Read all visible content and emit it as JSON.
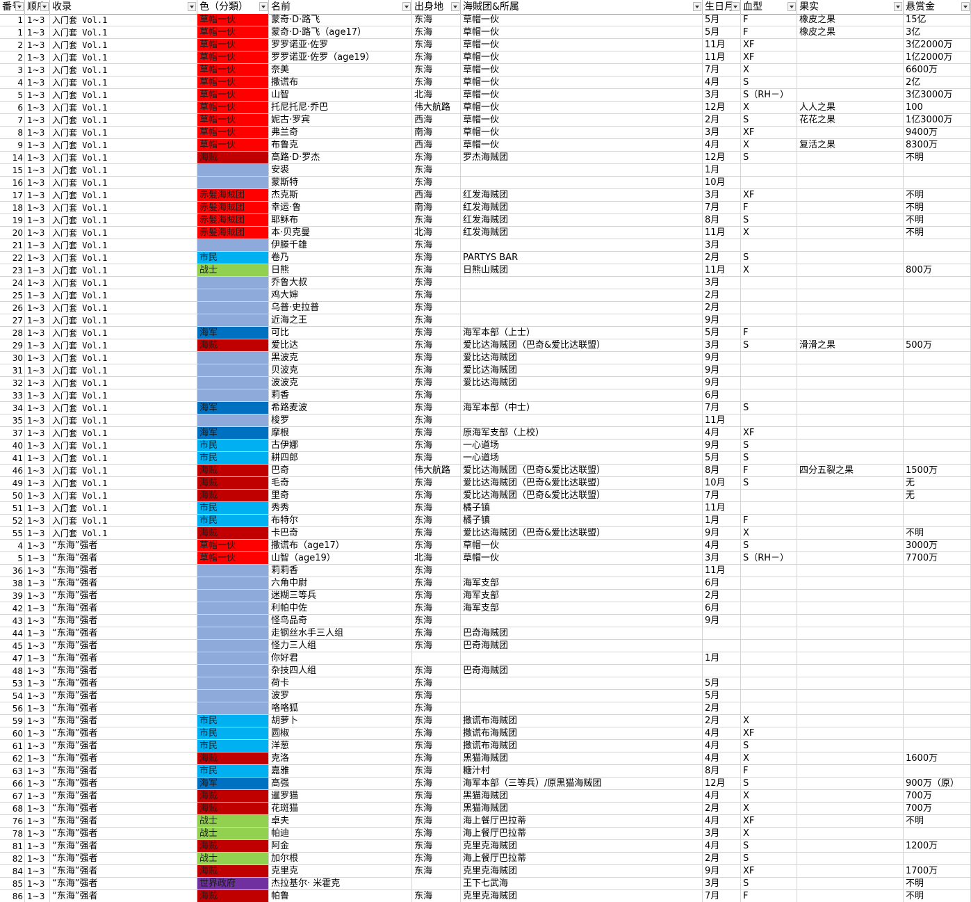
{
  "columns": [
    "番号",
    "顺序",
    "收录",
    "色（分類）",
    "名前",
    "出身地",
    "海賊团&所属",
    "生日月",
    "血型",
    "果实",
    "悬赏金"
  ],
  "colors": {
    "草帽一伙": "#ff0000",
    "海贼": "#c00000",
    "赤髪海賊团": "#ff0000",
    "市民": "#00b0f0",
    "战士": "#92d050",
    "海军": "#0070c0",
    "世界政府": "#7030a0",
    "none": "#8eaadb"
  },
  "rows": [
    [
      "1",
      "1~3",
      "入门套 Vol.1",
      "草帽一伙",
      "蒙奇·D·路飞",
      "东海",
      "草帽一伙",
      "5月",
      "F",
      "橡皮之果",
      "15亿"
    ],
    [
      "1",
      "1~3",
      "入门套 Vol.1",
      "草帽一伙",
      "蒙奇·D·路飞（age17）",
      "东海",
      "草帽一伙",
      "5月",
      "F",
      "橡皮之果",
      "3亿"
    ],
    [
      "2",
      "1~3",
      "入门套 Vol.1",
      "草帽一伙",
      "罗罗诺亚·佐罗",
      "东海",
      "草帽一伙",
      "11月",
      "XF",
      "",
      "3亿2000万"
    ],
    [
      "2",
      "1~3",
      "入门套 Vol.1",
      "草帽一伙",
      "罗罗诺亚·佐罗（age19）",
      "东海",
      "草帽一伙",
      "11月",
      "XF",
      "",
      "1亿2000万"
    ],
    [
      "3",
      "1~3",
      "入门套 Vol.1",
      "草帽一伙",
      "奈美",
      "东海",
      "草帽一伙",
      "7月",
      "X",
      "",
      "6600万"
    ],
    [
      "4",
      "1~3",
      "入门套 Vol.1",
      "草帽一伙",
      "撒谎布",
      "东海",
      "草帽一伙",
      "4月",
      "S",
      "",
      "2亿"
    ],
    [
      "5",
      "1~3",
      "入门套 Vol.1",
      "草帽一伙",
      "山智",
      "北海",
      "草帽一伙",
      "3月",
      "S（RH－）",
      "",
      "3亿3000万"
    ],
    [
      "6",
      "1~3",
      "入门套 Vol.1",
      "草帽一伙",
      "托尼托尼·乔巴",
      "伟大航路",
      "草帽一伙",
      "12月",
      "X",
      "人人之果",
      "100"
    ],
    [
      "7",
      "1~3",
      "入门套 Vol.1",
      "草帽一伙",
      "妮古·罗宾",
      "西海",
      "草帽一伙",
      "2月",
      "S",
      "花花之果",
      "1亿3000万"
    ],
    [
      "8",
      "1~3",
      "入门套 Vol.1",
      "草帽一伙",
      "弗兰奇",
      "南海",
      "草帽一伙",
      "3月",
      "XF",
      "",
      "9400万"
    ],
    [
      "9",
      "1~3",
      "入门套 Vol.1",
      "草帽一伙",
      "布鲁克",
      "西海",
      "草帽一伙",
      "4月",
      "X",
      "复活之果",
      "8300万"
    ],
    [
      "14",
      "1~3",
      "入门套 Vol.1",
      "海贼",
      "高路·D·罗杰",
      "东海",
      "罗杰海贼团",
      "12月",
      "S",
      "",
      "不明"
    ],
    [
      "15",
      "1~3",
      "入门套 Vol.1",
      "",
      "安裘",
      "东海",
      "",
      "1月",
      "",
      "",
      ""
    ],
    [
      "16",
      "1~3",
      "入门套 Vol.1",
      "",
      "蒙斯特",
      "东海",
      "",
      "10月",
      "",
      "",
      ""
    ],
    [
      "17",
      "1~3",
      "入门套 Vol.1",
      "赤髪海賊团",
      "杰克斯",
      "西海",
      "红发海贼团",
      "3月",
      "XF",
      "",
      "不明"
    ],
    [
      "18",
      "1~3",
      "入门套 Vol.1",
      "赤髪海賊团",
      "幸运·鲁",
      "南海",
      "红发海贼团",
      "7月",
      "F",
      "",
      "不明"
    ],
    [
      "19",
      "1~3",
      "入门套 Vol.1",
      "赤髪海賊团",
      "耶稣布",
      "东海",
      "红发海贼团",
      "8月",
      "S",
      "",
      "不明"
    ],
    [
      "20",
      "1~3",
      "入门套 Vol.1",
      "赤髪海賊团",
      "本·贝克曼",
      "北海",
      "红发海贼团",
      "11月",
      "X",
      "",
      "不明"
    ],
    [
      "21",
      "1~3",
      "入门套 Vol.1",
      "",
      "伊滕千雄",
      "东海",
      "",
      "3月",
      "",
      "",
      ""
    ],
    [
      "22",
      "1~3",
      "入门套 Vol.1",
      "市民",
      "卷乃",
      "东海",
      "PARTYS BAR",
      "2月",
      "S",
      "",
      ""
    ],
    [
      "23",
      "1~3",
      "入门套 Vol.1",
      "战士",
      "日熊",
      "东海",
      "日熊山贼团",
      "11月",
      "X",
      "",
      "800万"
    ],
    [
      "24",
      "1~3",
      "入门套 Vol.1",
      "",
      "乔鲁大叔",
      "东海",
      "",
      "3月",
      "",
      "",
      ""
    ],
    [
      "25",
      "1~3",
      "入门套 Vol.1",
      "",
      "鸡大婶",
      "东海",
      "",
      "2月",
      "",
      "",
      ""
    ],
    [
      "26",
      "1~3",
      "入门套 Vol.1",
      "",
      "乌普·史拉普",
      "东海",
      "",
      "2月",
      "",
      "",
      ""
    ],
    [
      "27",
      "1~3",
      "入门套 Vol.1",
      "",
      "近海之王",
      "东海",
      "",
      "9月",
      "",
      "",
      ""
    ],
    [
      "28",
      "1~3",
      "入门套 Vol.1",
      "海军",
      "可比",
      "东海",
      "海军本部（上士）",
      "5月",
      "F",
      "",
      ""
    ],
    [
      "29",
      "1~3",
      "入门套 Vol.1",
      "海贼",
      "爱比达",
      "东海",
      "爱比达海贼团（巴奇&爱比达联盟）",
      "3月",
      "S",
      "滑滑之果",
      "500万"
    ],
    [
      "30",
      "1~3",
      "入门套 Vol.1",
      "",
      "黑波克",
      "东海",
      "爱比达海贼团",
      "9月",
      "",
      "",
      ""
    ],
    [
      "31",
      "1~3",
      "入门套 Vol.1",
      "",
      "贝波克",
      "东海",
      "爱比达海贼团",
      "9月",
      "",
      "",
      ""
    ],
    [
      "32",
      "1~3",
      "入门套 Vol.1",
      "",
      "波波克",
      "东海",
      "爱比达海贼团",
      "9月",
      "",
      "",
      ""
    ],
    [
      "33",
      "1~3",
      "入门套 Vol.1",
      "",
      "莉香",
      "东海",
      "",
      "6月",
      "",
      "",
      ""
    ],
    [
      "34",
      "1~3",
      "入门套 Vol.1",
      "海军",
      "希路麦波",
      "东海",
      "海军本部（中士）",
      "7月",
      "S",
      "",
      ""
    ],
    [
      "35",
      "1~3",
      "入门套 Vol.1",
      "",
      "梭罗",
      "东海",
      "",
      "11月",
      "",
      "",
      ""
    ],
    [
      "37",
      "1~3",
      "入门套 Vol.1",
      "海军",
      "摩根",
      "东海",
      "原海军支部（上校）",
      "4月",
      "XF",
      "",
      ""
    ],
    [
      "40",
      "1~3",
      "入门套 Vol.1",
      "市民",
      "古伊娜",
      "东海",
      "一心道场",
      "9月",
      "S",
      "",
      ""
    ],
    [
      "41",
      "1~3",
      "入门套 Vol.1",
      "市民",
      "耕四郎",
      "东海",
      "一心道场",
      "5月",
      "S",
      "",
      ""
    ],
    [
      "46",
      "1~3",
      "入门套 Vol.1",
      "海贼",
      "巴奇",
      "伟大航路",
      "爱比达海贼团（巴奇&爱比达联盟）",
      "8月",
      "F",
      "四分五裂之果",
      "1500万"
    ],
    [
      "49",
      "1~3",
      "入门套 Vol.1",
      "海贼",
      "毛奇",
      "东海",
      "爱比达海贼团（巴奇&爱比达联盟）",
      "10月",
      "S",
      "",
      "无"
    ],
    [
      "50",
      "1~3",
      "入门套 Vol.1",
      "海贼",
      "里奇",
      "东海",
      "爱比达海贼团（巴奇&爱比达联盟）",
      "7月",
      "",
      "",
      "无"
    ],
    [
      "51",
      "1~3",
      "入门套 Vol.1",
      "市民",
      "秀秀",
      "东海",
      "橘子镇",
      "11月",
      "",
      "",
      ""
    ],
    [
      "52",
      "1~3",
      "入门套 Vol.1",
      "市民",
      "布特尔",
      "东海",
      "橘子镇",
      "1月",
      "F",
      "",
      ""
    ],
    [
      "55",
      "1~3",
      "入门套 Vol.1",
      "海贼",
      "卡巴奇",
      "东海",
      "爱比达海贼团（巴奇&爱比达联盟）",
      "9月",
      "X",
      "",
      "不明"
    ],
    [
      "4",
      "1~3",
      "“东海”强者",
      "草帽一伙",
      "撒谎布（age17）",
      "东海",
      "草帽一伙",
      "4月",
      "S",
      "",
      "3000万"
    ],
    [
      "5",
      "1~3",
      "“东海”强者",
      "草帽一伙",
      "山智（age19）",
      "北海",
      "草帽一伙",
      "3月",
      "S（RH－）",
      "",
      "7700万"
    ],
    [
      "36",
      "1~3",
      "“东海”强者",
      "",
      "莉莉香",
      "东海",
      "",
      "11月",
      "",
      "",
      ""
    ],
    [
      "38",
      "1~3",
      "“东海”强者",
      "",
      "六角中尉",
      "东海",
      "海军支部",
      "6月",
      "",
      "",
      ""
    ],
    [
      "39",
      "1~3",
      "“东海”强者",
      "",
      "迷糊三等兵",
      "东海",
      "海军支部",
      "2月",
      "",
      "",
      ""
    ],
    [
      "42",
      "1~3",
      "“东海”强者",
      "",
      "利帕中佐",
      "东海",
      "海军支部",
      "6月",
      "",
      "",
      ""
    ],
    [
      "43",
      "1~3",
      "“东海”强者",
      "",
      "怪鸟品奇",
      "东海",
      "",
      "9月",
      "",
      "",
      ""
    ],
    [
      "44",
      "1~3",
      "“东海”强者",
      "",
      "走钢丝水手三人组",
      "东海",
      "巴奇海贼团",
      "",
      "",
      "",
      ""
    ],
    [
      "45",
      "1~3",
      "“东海”强者",
      "",
      "怪力三人组",
      "东海",
      "巴奇海贼团",
      "",
      "",
      "",
      ""
    ],
    [
      "47",
      "1~3",
      "“东海”强者",
      "",
      "你好君",
      "",
      "",
      "1月",
      "",
      "",
      ""
    ],
    [
      "48",
      "1~3",
      "“东海”强者",
      "",
      "杂技四人组",
      "东海",
      "巴奇海贼团",
      "",
      "",
      "",
      ""
    ],
    [
      "53",
      "1~3",
      "“东海”强者",
      "",
      "荷卡",
      "东海",
      "",
      "5月",
      "",
      "",
      ""
    ],
    [
      "54",
      "1~3",
      "“东海”强者",
      "",
      "波罗",
      "东海",
      "",
      "5月",
      "",
      "",
      ""
    ],
    [
      "56",
      "1~3",
      "“东海”强者",
      "",
      "咯咯狐",
      "东海",
      "",
      "2月",
      "",
      "",
      ""
    ],
    [
      "59",
      "1~3",
      "“东海”强者",
      "市民",
      "胡萝卜",
      "东海",
      "撒谎布海贼团",
      "2月",
      "X",
      "",
      ""
    ],
    [
      "60",
      "1~3",
      "“东海”强者",
      "市民",
      "圆椒",
      "东海",
      "撒谎布海贼团",
      "4月",
      "XF",
      "",
      ""
    ],
    [
      "61",
      "1~3",
      "“东海”强者",
      "市民",
      "洋葱",
      "东海",
      "撒谎布海贼团",
      "4月",
      "S",
      "",
      ""
    ],
    [
      "62",
      "1~3",
      "“东海”强者",
      "海贼",
      "克洛",
      "东海",
      "黑猫海贼团",
      "4月",
      "X",
      "",
      "1600万"
    ],
    [
      "63",
      "1~3",
      "“东海”强者",
      "市民",
      "嘉雅",
      "东海",
      "糖汁村",
      "8月",
      "F",
      "",
      ""
    ],
    [
      "66",
      "1~3",
      "“东海”强者",
      "海军",
      "高强",
      "东海",
      "海军本部（三等兵）/原黑猫海贼团",
      "12月",
      "S",
      "",
      "900万（原）"
    ],
    [
      "67",
      "1~3",
      "“东海”强者",
      "海贼",
      "暹罗猫",
      "东海",
      "黑猫海贼团",
      "4月",
      "X",
      "",
      "700万"
    ],
    [
      "68",
      "1~3",
      "“东海”强者",
      "海贼",
      "花斑猫",
      "东海",
      "黑猫海贼团",
      "2月",
      "X",
      "",
      "700万"
    ],
    [
      "76",
      "1~3",
      "“东海”强者",
      "战士",
      "卓夫",
      "东海",
      "海上餐厅巴拉蒂",
      "4月",
      "XF",
      "",
      "不明"
    ],
    [
      "78",
      "1~3",
      "“东海”强者",
      "战士",
      "帕迪",
      "东海",
      "海上餐厅巴拉蒂",
      "3月",
      "X",
      "",
      ""
    ],
    [
      "81",
      "1~3",
      "“东海”强者",
      "海贼",
      "阿金",
      "东海",
      "克里克海贼团",
      "4月",
      "S",
      "",
      "1200万"
    ],
    [
      "82",
      "1~3",
      "“东海”强者",
      "战士",
      "加尔根",
      "东海",
      "海上餐厅巴拉蒂",
      "2月",
      "S",
      "",
      ""
    ],
    [
      "84",
      "1~3",
      "“东海”强者",
      "海贼",
      "克里克",
      "东海",
      "克里克海贼团",
      "9月",
      "XF",
      "",
      "1700万"
    ],
    [
      "85",
      "1~3",
      "“东海”强者",
      "世界政府",
      "杰拉基尔· 米霍克",
      "",
      "王下七武海",
      "3月",
      "S",
      "",
      "不明"
    ],
    [
      "86",
      "1~3",
      "“东海”强者",
      "海贼",
      "帕鲁",
      "东海",
      "克里克海贼团",
      "7月",
      "F",
      "",
      "不明"
    ]
  ]
}
